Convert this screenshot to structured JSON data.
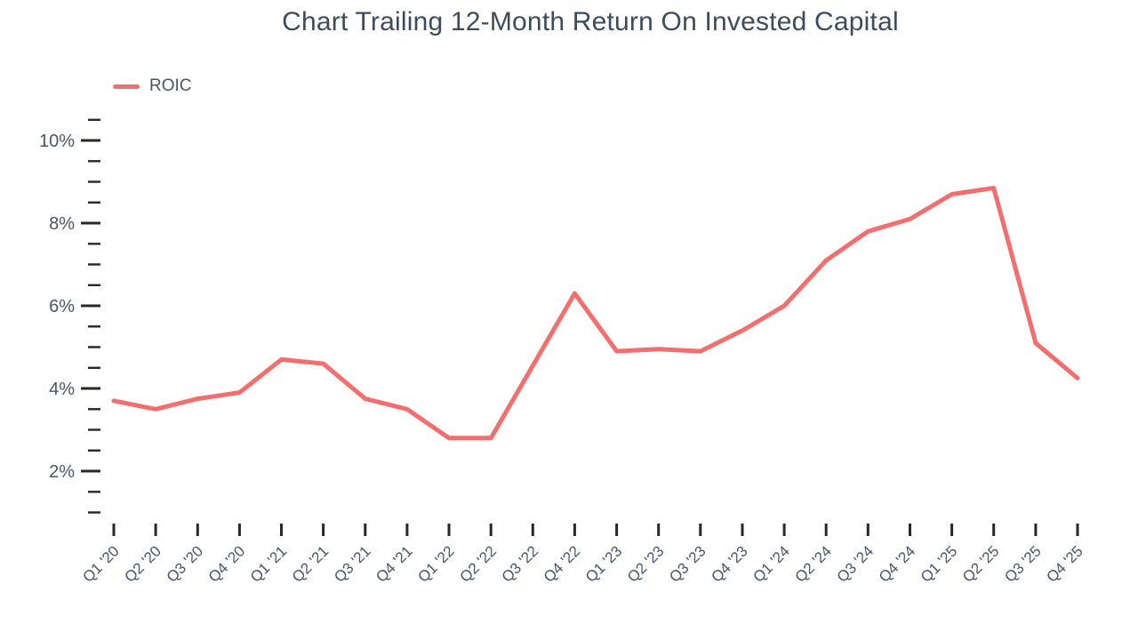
{
  "header": {
    "title": "Chart Trailing 12-Month Return On Invested Capital"
  },
  "legend": {
    "items": [
      {
        "label": "ROIC",
        "color": "#f56e6e"
      }
    ]
  },
  "chart_data": {
    "type": "line",
    "title": "Chart Trailing 12-Month Return On Invested Capital",
    "categories": [
      "Q1 '20",
      "Q2 '20",
      "Q3 '20",
      "Q4 '20",
      "Q1 '21",
      "Q2 '21",
      "Q3 '21",
      "Q4 '21",
      "Q1 '22",
      "Q2 '22",
      "Q3 '22",
      "Q4 '22",
      "Q1 '23",
      "Q2 '23",
      "Q3 '23",
      "Q4 '23",
      "Q1 '24",
      "Q2 '24",
      "Q3 '24",
      "Q4 '24",
      "Q1 '25",
      "Q2 '25",
      "Q3 '25",
      "Q4 '25"
    ],
    "series": [
      {
        "name": "ROIC",
        "color": "#f56e6e",
        "values": [
          3.7,
          3.5,
          3.75,
          3.9,
          4.7,
          4.6,
          3.75,
          3.5,
          2.8,
          2.8,
          4.55,
          6.3,
          4.9,
          4.95,
          4.9,
          5.4,
          6.0,
          7.1,
          7.8,
          8.1,
          8.7,
          8.85,
          5.1,
          4.25
        ]
      }
    ],
    "xlabel": "",
    "ylabel": "",
    "y_axis": {
      "unit": "percent",
      "major_ticks": [
        2,
        4,
        6,
        8,
        10
      ],
      "labels": [
        "2%",
        "4%",
        "6%",
        "8%",
        "10%"
      ],
      "minor_tick_step": 0.5,
      "range_min": 1.0,
      "range_max": 10.5
    },
    "ylim": [
      1.0,
      10.5
    ],
    "grid": false,
    "legend_position": "top-left",
    "colors": {
      "line": "#f56e6e",
      "axis_tick": "#26282b",
      "axis_label": "#4a5568",
      "title": "#3d4c5c"
    }
  }
}
